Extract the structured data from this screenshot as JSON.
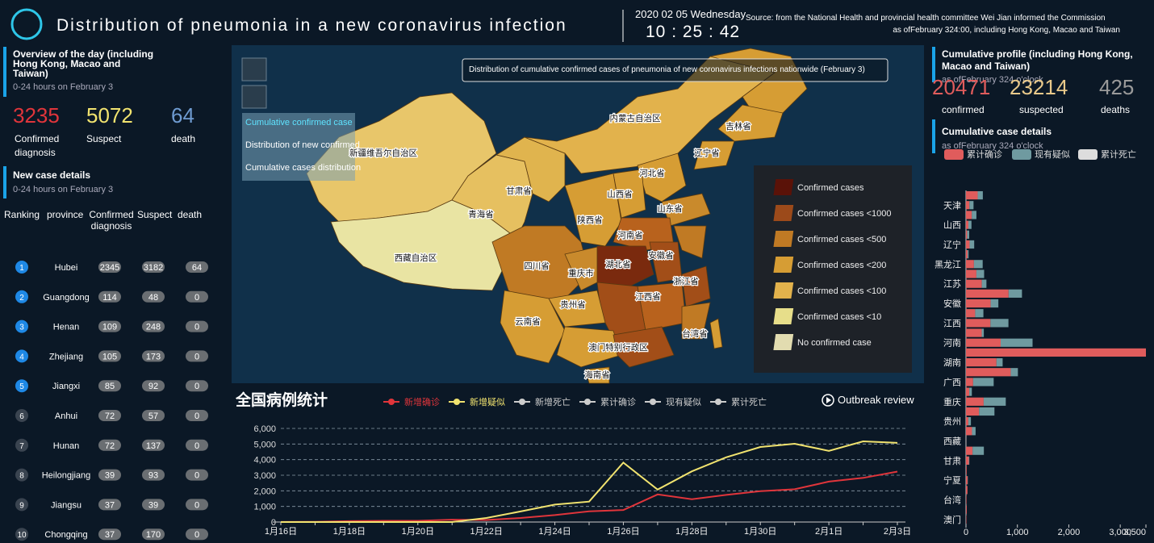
{
  "header": {
    "title": "Distribution of pneumonia in a new coronavirus infection",
    "date": "2020 02 05 Wednesday",
    "time": "10 : 25 : 42",
    "source_lines": [
      "Source: from the National Health and provincial health committee Wei Jian informed the Commission",
      "as ofFebruary 324:00, including Hong Kong, Macao and Taiwan"
    ]
  },
  "overview": {
    "title": "Overview of the day (including Hong Kong, Macao and Taiwan)",
    "subtitle": "0-24 hours on February 3",
    "stats": [
      {
        "value": 3235,
        "label": "Confirmed diagnosis",
        "color": "#e0353b"
      },
      {
        "value": 5072,
        "label": "Suspect",
        "color": "#f1e36f"
      },
      {
        "value": 64,
        "label": "death",
        "color": "#6f9bd1"
      }
    ]
  },
  "new_cases": {
    "title": "New case details",
    "subtitle": "0-24 hours on February 3",
    "columns": [
      "Ranking",
      "province",
      "Confirmed diagnosis",
      "Suspect",
      "death"
    ],
    "rows": [
      [
        1,
        "Hubei",
        2345,
        3182,
        64
      ],
      [
        2,
        "Guangdong",
        114,
        48,
        0
      ],
      [
        3,
        "Henan",
        109,
        248,
        0
      ],
      [
        4,
        "Zhejiang",
        105,
        173,
        0
      ],
      [
        5,
        "Jiangxi",
        85,
        92,
        0
      ],
      [
        6,
        "Anhui",
        72,
        57,
        0
      ],
      [
        7,
        "Hunan",
        72,
        137,
        0
      ],
      [
        8,
        "Heilongjiang",
        39,
        93,
        0
      ],
      [
        9,
        "Jiangsu",
        37,
        39,
        0
      ],
      [
        10,
        "Chongqing",
        37,
        170,
        0
      ]
    ]
  },
  "map": {
    "title": "Distribution of cumulative confirmed cases of pneumonia of new coronavirus infections nationwide (February 3)",
    "tabs": [
      "Cumulative confirmed case",
      "Distribution of new confirmed",
      "Cumulative cases distribution"
    ],
    "legend": [
      {
        "label": "Confirmed cases",
        "color": "#5a1208"
      },
      {
        "label": "Confirmed cases <1000",
        "color": "#9c4a1a"
      },
      {
        "label": "Confirmed cases <500",
        "color": "#c07a24"
      },
      {
        "label": "Confirmed cases <200",
        "color": "#d69d34"
      },
      {
        "label": "Confirmed cases <100",
        "color": "#e2b24c"
      },
      {
        "label": "Confirmed cases <10",
        "color": "#e7de8a"
      },
      {
        "label": "No confirmed case",
        "color": "#e2dcb0"
      }
    ],
    "labels": [
      "新疆维吾尔自治区",
      "西藏自治区",
      "青海省",
      "甘肃省",
      "内蒙古自治区",
      "吉林省",
      "辽宁省",
      "河北省",
      "山西省",
      "陕西省",
      "山东省",
      "河南省",
      "安徽省",
      "湖北省",
      "四川省",
      "重庆市",
      "贵州省",
      "云南省",
      "江西省",
      "浙江省",
      "台湾省",
      "澳门特别行政区",
      "海南省"
    ]
  },
  "cumulative": {
    "title": "Cumulative profile (including Hong Kong, Macao and Taiwan)",
    "subtitle": "as ofFebruary 324 o'clock",
    "stats": [
      {
        "value": 20471,
        "label": "confirmed",
        "color": "#e05c5c"
      },
      {
        "value": 23214,
        "label": "suspected",
        "color": "#e9c98a"
      },
      {
        "value": 425,
        "label": "deaths",
        "color": "#9a9a9a"
      }
    ]
  },
  "chart_data": [
    {
      "type": "line",
      "title": "全国病例统计",
      "button": "Outbreak review",
      "categories": [
        "1月16日",
        null,
        "1月18日",
        null,
        "1月20日",
        null,
        "1月22日",
        null,
        "1月24日",
        null,
        "1月26日",
        null,
        "1月28日",
        null,
        "1月30日",
        null,
        "2月1日",
        null,
        "2月3日"
      ],
      "series": [
        {
          "name": "新增确诊",
          "color": "#e0353b",
          "values": [
            4,
            17,
            59,
            77,
            77,
            149,
            131,
            259,
            444,
            688,
            769,
            1771,
            1459,
            1737,
            1982,
            2102,
            2590,
            2829,
            3235
          ]
        },
        {
          "name": "新增疑似",
          "color": "#f1e36f",
          "values": [
            0,
            0,
            0,
            0,
            0,
            0,
            257,
            680,
            1118,
            1309,
            3806,
            2077,
            3248,
            4148,
            4812,
            5019,
            4562,
            5173,
            5072
          ]
        }
      ],
      "inactive_series": [
        {
          "name": "新增死亡",
          "color": "#cccccc"
        },
        {
          "name": "累计确诊",
          "color": "#cccccc"
        },
        {
          "name": "现有疑似",
          "color": "#cccccc"
        },
        {
          "name": "累计死亡",
          "color": "#cccccc"
        }
      ],
      "ylim": [
        0,
        6000
      ],
      "yticks": [
        0,
        {
          "value": 1000,
          "label": "1,000"
        },
        {
          "value": 2000,
          "label": "2,000"
        },
        {
          "value": 3000,
          "label": "3,000"
        },
        {
          "value": 4000,
          "label": "4,000"
        },
        {
          "value": 5000,
          "label": "5,000"
        },
        {
          "value": 6000,
          "label": "6,000"
        }
      ],
      "grid": true
    },
    {
      "type": "hbar",
      "title": "Cumulative case details",
      "subtitle": "as ofFebruary 324 o'clock",
      "stacked": true,
      "categories": [
        null,
        "天津",
        null,
        "山西",
        null,
        "辽宁",
        null,
        "黑龙江",
        null,
        "江苏",
        null,
        "安徽",
        null,
        "江西",
        null,
        "河南",
        null,
        "湖南",
        null,
        "广西",
        null,
        "重庆",
        null,
        "贵州",
        null,
        "西藏",
        null,
        "甘肃",
        null,
        "宁夏",
        null,
        "台湾",
        null,
        "澳门"
      ],
      "series": [
        {
          "name": "累计确诊",
          "color": "#e05c5c",
          "values": [
            228,
            67,
            113,
            47,
            23,
            70,
            31,
            155,
            203,
            308,
            829,
            480,
            179,
            476,
            307,
            675,
            3500,
            593,
            870,
            139,
            64,
            344,
            254,
            46,
            117,
            1,
            128,
            55,
            13,
            31,
            29,
            10,
            15,
            8
          ]
        },
        {
          "name": "现有疑似",
          "color": "#6f9aa0",
          "values": [
            100,
            80,
            90,
            60,
            40,
            90,
            20,
            170,
            150,
            90,
            260,
            150,
            160,
            350,
            40,
            620,
            0,
            120,
            140,
            400,
            50,
            430,
            300,
            50,
            70,
            0,
            220,
            10,
            0,
            5,
            0,
            0,
            0,
            0
          ]
        }
      ],
      "extra_legend": [
        {
          "name": "累计死亡",
          "color": "#dddddd"
        }
      ],
      "xlim": [
        0,
        3500
      ],
      "xticks": [
        0,
        {
          "value": 1000,
          "label": "1,000"
        },
        {
          "value": 2000,
          "label": "2,000"
        },
        {
          "value": 3000,
          "label": "3,000"
        },
        {
          "value": 3500,
          "label": "3,500"
        }
      ]
    }
  ]
}
